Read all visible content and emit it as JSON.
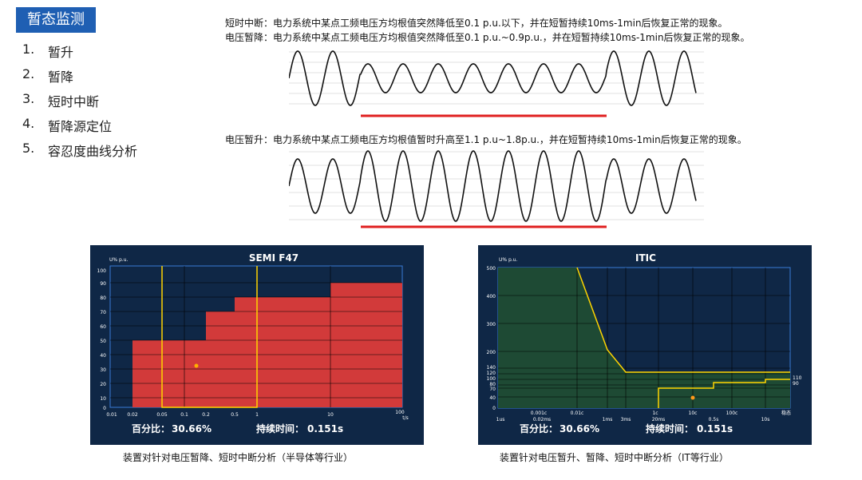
{
  "page": {
    "title": "暂态监测"
  },
  "menu": [
    {
      "num": "1.",
      "label": "暂升"
    },
    {
      "num": "2.",
      "label": "暂降"
    },
    {
      "num": "3.",
      "label": "短时中断"
    },
    {
      "num": "4.",
      "label": "暂降源定位"
    },
    {
      "num": "5.",
      "label": "容忍度曲线分析"
    }
  ],
  "definitions": {
    "interruption": "短时中断：电力系统中某点工频电压方均根值突然降低至0.1 p.u.以下，并在短暂持续10ms-1min后恢复正常的现象。",
    "sag": "电压暂降：电力系统中某点工频电压方均根值突然降低至0.1 p.u.~0.9p.u.，并在短暂持续10ms-1min后恢复正常的现象。",
    "swell": "电压暂升：电力系统中某点工频电压方均根值暂时升高至1.1 p.u~1.8p.u.，并在短暂持续10ms-1min后恢复正常的现象。"
  },
  "colors": {
    "accent": "#1f5fb3",
    "panel_bg": "#0f2746",
    "red": "#d23a3a",
    "green": "#1e4a34",
    "yellow": "#ffd400",
    "marker": "#ff9a1a"
  },
  "semi": {
    "title": "SEMI  F47",
    "ylabel": "U% p.u.",
    "xunit": "t/s",
    "yticks": [
      "100",
      "90",
      "80",
      "70",
      "60",
      "50",
      "40",
      "30",
      "20",
      "10",
      "0"
    ],
    "xticks": [
      "0.01",
      "0.02",
      "0.05",
      "0.1",
      "0.2",
      "0.5",
      "1",
      "10",
      "100"
    ],
    "stat_pct_label": "百分比：",
    "stat_pct_value": "30.66%",
    "stat_dur_label": "持续时间：",
    "stat_dur_value": "0.151s",
    "caption": "装置对针对电压暂降、短时中断分析（半导体等行业）"
  },
  "itic": {
    "title": "ITIC",
    "ylabel": "U% p.u.",
    "yticks": [
      "500",
      "400",
      "300",
      "200",
      "140",
      "120",
      "100",
      "80",
      "70",
      "40",
      "0"
    ],
    "xticks_top": [
      "0.001c",
      "0.01c",
      "1c",
      "10c",
      "100c",
      "稳态"
    ],
    "xticks_bottom": [
      "1us",
      "0.02ms",
      "1ms",
      "3ms",
      "20ms",
      "0.5s",
      "10s"
    ],
    "right_labels": [
      "110",
      "90"
    ],
    "stat_pct_label": "百分比：",
    "stat_pct_value": "30.66%",
    "stat_dur_label": "持续时间：",
    "stat_dur_value": "0.151s",
    "caption": "装置针对电压暂升、暂降、短时中断分析（IT等行业）"
  }
}
